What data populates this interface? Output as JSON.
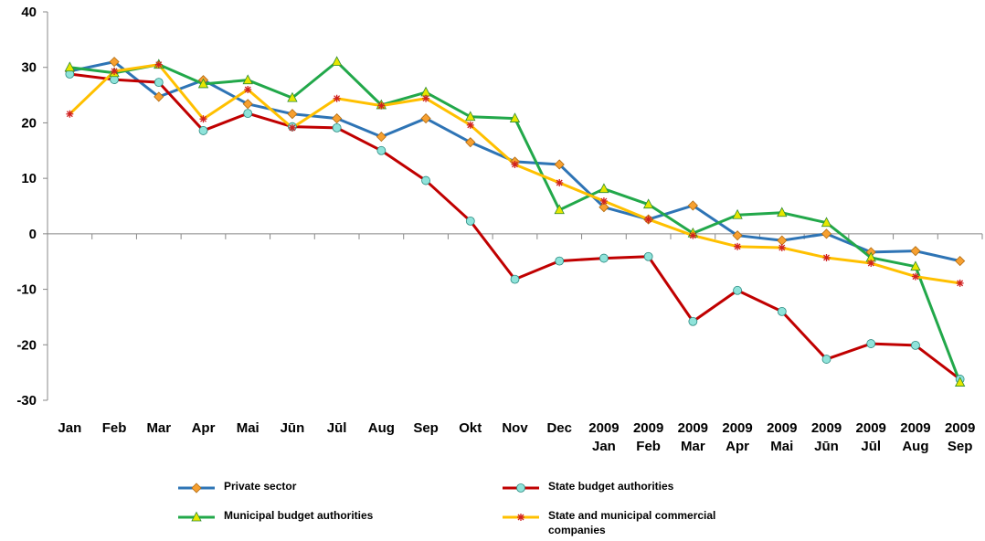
{
  "chart_data": {
    "type": "line",
    "categories": [
      "Jan",
      "Feb",
      "Mar",
      "Apr",
      "Mai",
      "Jūn",
      "Jūl",
      "Aug",
      "Sep",
      "Okt",
      "Nov",
      "Dec",
      "2009\nJan",
      "2009\nFeb",
      "2009\nMar",
      "2009\nApr",
      "2009\nMai",
      "2009\nJūn",
      "2009\nJūl",
      "2009\nAug",
      "2009\nSep"
    ],
    "ylim": [
      -30,
      40
    ],
    "yticks": [
      -30,
      -20,
      -10,
      0,
      10,
      20,
      30,
      40
    ],
    "grid": false,
    "series": [
      {
        "name": "Private sector",
        "color": "#2e74b5",
        "marker": "diamond",
        "marker_color": "#f7a030",
        "values": [
          29.3,
          31,
          24.7,
          27.7,
          23.4,
          21.6,
          20.8,
          17.5,
          20.8,
          16.5,
          13,
          12.5,
          4.8,
          2.6,
          5.1,
          -0.3,
          -1.2,
          0,
          -3.3,
          -3.1,
          -4.9
        ]
      },
      {
        "name": "State budget authorities",
        "color": "#c00000",
        "marker": "circle",
        "marker_color": "#8fe3da",
        "values": [
          28.8,
          27.8,
          27.3,
          18.6,
          21.7,
          19.3,
          19.1,
          15,
          9.6,
          2.3,
          -8.2,
          -4.9,
          -4.4,
          -4.1,
          -15.8,
          -10.2,
          -14,
          -22.6,
          -19.8,
          -20.1,
          -26.2
        ]
      },
      {
        "name": "Municipal budget authorities",
        "color": "#22a84a",
        "marker": "triangle",
        "marker_color": "#e6e600",
        "values": [
          30,
          29,
          30.5,
          27,
          27.7,
          24.5,
          31,
          23.2,
          25.5,
          21.1,
          20.8,
          4.3,
          8.1,
          5.3,
          0.1,
          3.4,
          3.8,
          2,
          -4.3,
          -5.9,
          -26.8
        ]
      },
      {
        "name": "State and municipal commercial companies",
        "color": "#ffc000",
        "marker": "asterisk",
        "marker_color": "#d02020",
        "values": [
          21.6,
          29.3,
          30.5,
          20.7,
          26,
          19.1,
          24.4,
          23.1,
          24.4,
          19.6,
          12.5,
          9.2,
          5.9,
          2.6,
          -0.3,
          -2.3,
          -2.5,
          -4.3,
          -5.3,
          -7.7,
          -8.9
        ]
      }
    ]
  }
}
